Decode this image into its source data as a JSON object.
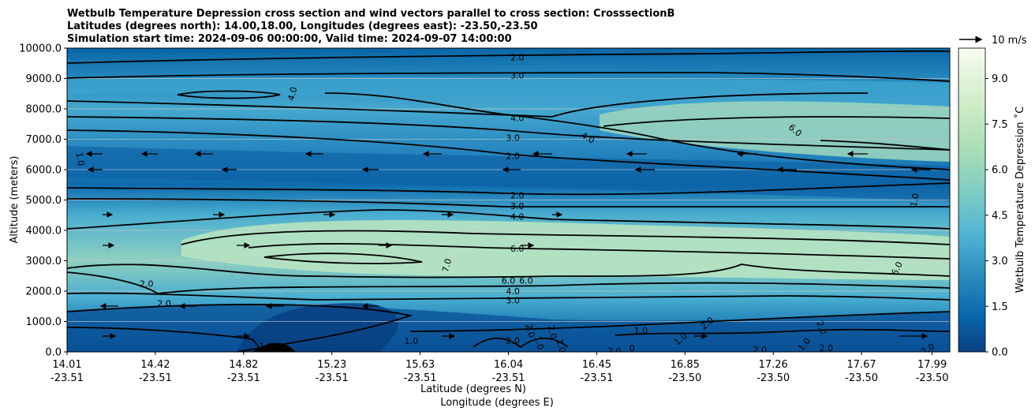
{
  "chart_data": {
    "type": "contour",
    "title_lines": [
      "Wetbulb Temperature Depression cross section and wind vectors parallel to cross section: CrosssectionB",
      "Latitudes (degrees north): 14.00,18.00, Longitudes (degrees east): -23.50,-23.50",
      "Simulation start time: 2024-09-06 00:00:00, Valid time: 2024-09-07 14:00:00"
    ],
    "ylabel": "Altitude (meters)",
    "xlabel_lat": "Latitude (degrees N)",
    "xlabel_lon": "Longitude (degrees E)",
    "ylim": [
      0,
      10000
    ],
    "y_ticks": [
      0,
      1000,
      2000,
      3000,
      4000,
      5000,
      6000,
      7000,
      8000,
      9000,
      10000
    ],
    "y_tick_labels": [
      "0.0",
      "1000.0",
      "2000.0",
      "3000.0",
      "4000.0",
      "5000.0",
      "6000.0",
      "7000.0",
      "8000.0",
      "9000.0",
      "10000.0"
    ],
    "xlim": [
      0,
      10
    ],
    "x_ticks": [
      0,
      1,
      2,
      3,
      4,
      5,
      6,
      7,
      8,
      9,
      9.8
    ],
    "x_tick_lat": [
      "14.01",
      "14.42",
      "14.82",
      "15.23",
      "15.63",
      "16.04",
      "16.45",
      "16.85",
      "17.26",
      "17.67",
      "17.99"
    ],
    "x_tick_lon": [
      "-23.51",
      "-23.51",
      "-23.51",
      "-23.51",
      "-23.51",
      "-23.51",
      "-23.51",
      "-23.50",
      "-23.50",
      "-23.50",
      "-23.50"
    ],
    "colorbar": {
      "label": "Wetbulb Temperature Depression ˚C",
      "range": [
        0,
        10
      ],
      "ticks": [
        "0.0",
        "1.5",
        "3.0",
        "4.5",
        "6.0",
        "7.5",
        "9.0"
      ],
      "tick_values": [
        0,
        1.5,
        3.0,
        4.5,
        6.0,
        7.5,
        9.0
      ]
    },
    "quiver_key": {
      "label": "10 m/s"
    },
    "contour_labels": [
      {
        "text": "2.0",
        "x": 5.1,
        "y": 9700
      },
      {
        "text": "3.0",
        "x": 5.1,
        "y": 9100
      },
      {
        "text": "4.0",
        "x": 2.55,
        "y": 8500,
        "rot": -75
      },
      {
        "text": "4.0",
        "x": 5.1,
        "y": 7700
      },
      {
        "text": "4.0",
        "x": 5.9,
        "y": 7050,
        "rot": 30
      },
      {
        "text": "6.0",
        "x": 8.25,
        "y": 7300,
        "rot": 40
      },
      {
        "text": "3.0",
        "x": 5.05,
        "y": 7050
      },
      {
        "text": "2.0",
        "x": 5.05,
        "y": 6450
      },
      {
        "text": "1.0",
        "x": 0.15,
        "y": 6350,
        "rot": 80
      },
      {
        "text": "2.0",
        "x": 5.1,
        "y": 5150
      },
      {
        "text": "3.0",
        "x": 5.1,
        "y": 4800
      },
      {
        "text": "4.0",
        "x": 5.1,
        "y": 4450
      },
      {
        "text": "1.0",
        "x": 9.6,
        "y": 5000,
        "rot": -80
      },
      {
        "text": "6.0",
        "x": 5.1,
        "y": 3400
      },
      {
        "text": "7.0",
        "x": 4.3,
        "y": 2850,
        "rot": -75
      },
      {
        "text": "6.0",
        "x": 5.0,
        "y": 2350
      },
      {
        "text": "6.0",
        "x": 5.2,
        "y": 2350
      },
      {
        "text": "6.0",
        "x": 9.4,
        "y": 2750,
        "rot": -65
      },
      {
        "text": "4.0",
        "x": 5.05,
        "y": 2000
      },
      {
        "text": "3.0",
        "x": 5.05,
        "y": 1700
      },
      {
        "text": "2.0",
        "x": 0.9,
        "y": 2250
      },
      {
        "text": "2.0",
        "x": 1.1,
        "y": 1600
      },
      {
        "text": "1.0",
        "x": 6.5,
        "y": 700
      },
      {
        "text": "1.0",
        "x": 2.25,
        "y": 200
      },
      {
        "text": "1.0",
        "x": 3.9,
        "y": 360
      },
      {
        "text": "2.0",
        "x": 5.05,
        "y": 380
      },
      {
        "text": "2.0",
        "x": 5.25,
        "y": 700,
        "rot": 75
      },
      {
        "text": "2.0",
        "x": 5.5,
        "y": 650,
        "rot": 75
      },
      {
        "text": "1.0",
        "x": 5.35,
        "y": 300,
        "rot": 75
      },
      {
        "text": "1.0",
        "x": 5.6,
        "y": 200,
        "rot": 75
      },
      {
        "text": "2.0",
        "x": 6.2,
        "y": 40
      },
      {
        "text": "0",
        "x": 6.4,
        "y": 130
      },
      {
        "text": "1.0",
        "x": 6.95,
        "y": 430,
        "rot": -40
      },
      {
        "text": "2.0",
        "x": 7.25,
        "y": 950,
        "rot": -40
      },
      {
        "text": "2.0",
        "x": 7.85,
        "y": 80
      },
      {
        "text": "2.0",
        "x": 8.55,
        "y": 800,
        "rot": 70
      },
      {
        "text": "1.0",
        "x": 8.35,
        "y": 250,
        "rot": -50
      },
      {
        "text": "2.0",
        "x": 8.6,
        "y": 130
      },
      {
        "text": "2.0",
        "x": 9.75,
        "y": 100,
        "rot": -30
      }
    ]
  }
}
